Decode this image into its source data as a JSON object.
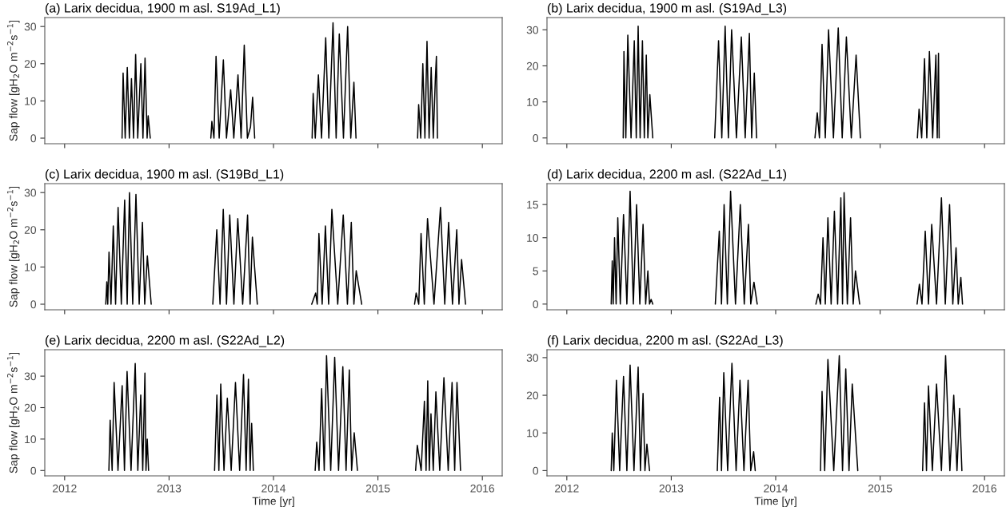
{
  "chart_data": [
    {
      "type": "line",
      "title": "(a) Larix decidua, 1900 m asl. S19Ad_L1)",
      "ylabel": "Sap flow [gH$_{2}$O m$^{−2}$s$^{−1}$]",
      "xlim": [
        2011.81,
        2016.19
      ],
      "xticks": [
        2012,
        2013,
        2014,
        2015,
        2016
      ],
      "ylim": [
        -1.5,
        32.4
      ],
      "yticks": [
        0,
        10,
        20,
        30
      ],
      "tick_labels": "y",
      "series": [
        {
          "color": "#000000",
          "x": [
            2012.55,
            2012.56,
            2012.58,
            2012.6,
            2012.62,
            2012.64,
            2012.66,
            2012.68,
            2012.7,
            2012.73,
            2012.75,
            2012.77,
            2012.79,
            2012.8,
            2012.82,
            2013.1,
            2013.4,
            2013.41,
            2013.43,
            2013.45,
            2013.48,
            2013.52,
            2013.55,
            2013.59,
            2013.62,
            2013.66,
            2013.69,
            2013.72,
            2013.75,
            2013.78,
            2013.8,
            2013.82,
            2014.1,
            2014.37,
            2014.38,
            2014.4,
            2014.43,
            2014.46,
            2014.5,
            2014.53,
            2014.57,
            2014.6,
            2014.63,
            2014.67,
            2014.71,
            2014.74,
            2014.77,
            2014.79,
            2015.1,
            2015.38,
            2015.39,
            2015.41,
            2015.43,
            2015.45,
            2015.47,
            2015.49,
            2015.51,
            2015.53,
            2015.55,
            2015.56,
            2015.57
          ],
          "values": [
            0,
            17.5,
            0,
            19,
            0,
            16,
            0,
            22.5,
            0,
            20,
            0,
            21.5,
            0,
            6,
            0,
            null,
            0,
            4.5,
            0,
            22,
            0,
            21,
            0,
            13,
            0,
            17,
            0,
            25,
            0,
            3,
            11,
            0,
            null,
            0,
            12,
            0,
            17,
            0,
            27,
            0,
            31,
            0,
            28,
            0,
            30,
            0,
            15,
            0,
            null,
            0,
            9,
            0,
            20,
            0,
            26,
            0,
            19,
            0,
            16,
            22,
            0
          ]
        }
      ]
    },
    {
      "type": "line",
      "title": "(b) Larix decidua, 1900 m asl. (S19Ad_L3)",
      "xlim": [
        2011.81,
        2016.19
      ],
      "xticks": [
        2012,
        2013,
        2014,
        2015,
        2016
      ],
      "ylim": [
        -1.6,
        33.4
      ],
      "yticks": [
        0,
        10,
        20,
        30
      ],
      "tick_labels": "y",
      "series": [
        {
          "color": "#000000",
          "x": [
            2012.54,
            2012.547,
            2012.565,
            2012.584,
            2012.615,
            2012.646,
            2012.665,
            2012.683,
            2012.702,
            2012.724,
            2012.742,
            2012.761,
            2012.776,
            2012.795,
            2012.823,
            2013.1,
            2013.416,
            2013.453,
            2013.484,
            2013.516,
            2013.547,
            2013.578,
            2013.624,
            2013.671,
            2013.708,
            2013.748,
            2013.77,
            2013.795,
            2013.817,
            2014.1,
            2014.376,
            2014.398,
            2014.419,
            2014.444,
            2014.475,
            2014.506,
            2014.553,
            2014.599,
            2014.637,
            2014.677,
            2014.724,
            2014.77,
            2014.811,
            2015.1,
            2015.357,
            2015.373,
            2015.398,
            2015.425,
            2015.447,
            2015.472,
            2015.503,
            2015.534,
            2015.547,
            2015.559,
            2015.565
          ],
          "values": [
            0,
            24,
            0,
            28.5,
            0,
            27,
            0,
            31,
            0,
            27,
            0,
            23,
            0,
            12,
            0,
            null,
            0,
            27,
            0,
            31,
            0,
            30,
            0,
            28,
            0,
            29,
            0,
            18,
            0,
            null,
            0,
            7,
            0,
            26,
            0,
            30,
            0,
            30.5,
            0,
            28,
            0,
            23,
            0,
            null,
            0,
            8,
            0,
            22,
            0,
            24,
            0,
            23,
            0,
            23.5,
            0
          ]
        }
      ]
    },
    {
      "type": "line",
      "title": "(c) Larix decidua, 1900 m asl. (S19Bd_L1)",
      "ylabel": "Sap flow [gH$_{2}$O m$^{−2}$s$^{−1}$]",
      "xlim": [
        2011.81,
        2016.19
      ],
      "xticks": [
        2012,
        2013,
        2014,
        2015,
        2016
      ],
      "ylim": [
        -1.5,
        32.4
      ],
      "yticks": [
        0,
        10,
        20,
        30
      ],
      "tick_labels": "y",
      "series": [
        {
          "color": "#000000",
          "x": [
            2012.394,
            2012.404,
            2012.413,
            2012.425,
            2012.444,
            2012.466,
            2012.488,
            2012.512,
            2012.543,
            2012.575,
            2012.599,
            2012.621,
            2012.652,
            2012.683,
            2012.714,
            2012.745,
            2012.767,
            2012.792,
            2012.829,
            2013.1,
            2013.419,
            2013.457,
            2013.488,
            2013.519,
            2013.55,
            2013.581,
            2013.621,
            2013.658,
            2013.705,
            2013.752,
            2013.776,
            2013.798,
            2013.845,
            2014.1,
            2014.366,
            2014.404,
            2014.419,
            2014.435,
            2014.466,
            2014.497,
            2014.528,
            2014.559,
            2014.615,
            2014.668,
            2014.708,
            2014.745,
            2014.77,
            2014.792,
            2014.845,
            2015.1,
            2015.351,
            2015.366,
            2015.391,
            2015.413,
            2015.444,
            2015.475,
            2015.537,
            2015.599,
            2015.64,
            2015.677,
            2015.714,
            2015.755,
            2015.776,
            2015.801,
            2015.839
          ],
          "values": [
            0,
            6,
            0,
            14,
            0,
            21,
            0,
            26,
            0,
            28,
            0,
            30,
            0,
            29.5,
            0,
            22,
            0,
            13,
            0,
            null,
            0,
            20,
            0,
            25.5,
            0,
            24,
            0,
            23,
            0,
            24,
            0,
            18,
            0,
            null,
            0,
            3,
            0,
            19,
            0,
            21,
            0,
            25.5,
            0,
            24,
            0,
            22,
            0,
            9,
            0,
            null,
            0,
            3,
            0,
            19,
            0,
            23,
            0,
            26,
            0,
            22,
            0,
            20,
            0,
            12,
            0
          ]
        }
      ]
    },
    {
      "type": "line",
      "title": "(d) Larix decidua, 2200 m asl. (S22Ad_L1)",
      "xlim": [
        2011.81,
        2016.19
      ],
      "xticks": [
        2012,
        2013,
        2014,
        2015,
        2016
      ],
      "ylim": [
        -0.86,
        18.15
      ],
      "yticks": [
        0,
        5,
        10,
        15
      ],
      "tick_labels": "y",
      "series": [
        {
          "color": "#000000",
          "x": [
            2012.425,
            2012.435,
            2012.444,
            2012.457,
            2012.472,
            2012.488,
            2012.512,
            2012.543,
            2012.575,
            2012.606,
            2012.637,
            2012.668,
            2012.699,
            2012.73,
            2012.755,
            2012.776,
            2012.792,
            2012.807,
            2012.823,
            2013.1,
            2013.422,
            2013.46,
            2013.481,
            2013.506,
            2013.537,
            2013.568,
            2013.615,
            2013.661,
            2013.699,
            2013.739,
            2013.761,
            2013.792,
            2013.823,
            2014.1,
            2014.385,
            2014.407,
            2014.429,
            2014.453,
            2014.475,
            2014.5,
            2014.531,
            2014.562,
            2014.593,
            2014.624,
            2014.64,
            2014.655,
            2014.686,
            2014.717,
            2014.742,
            2014.764,
            2014.804,
            2015.1,
            2015.354,
            2015.376,
            2015.401,
            2015.432,
            2015.463,
            2015.494,
            2015.54,
            2015.587,
            2015.624,
            2015.665,
            2015.696,
            2015.727,
            2015.748,
            2015.773,
            2015.789
          ],
          "values": [
            0,
            6.5,
            0,
            10,
            0,
            13,
            0,
            13.5,
            0,
            17,
            0,
            15,
            0,
            12,
            0,
            5,
            0,
            0.7,
            0,
            null,
            0,
            11,
            0,
            15,
            0,
            17,
            0,
            15,
            0,
            12,
            0,
            3.3,
            0,
            null,
            0,
            1.5,
            0,
            10,
            0,
            13,
            0,
            14,
            0,
            16,
            0,
            16.8,
            0,
            13,
            0,
            5,
            0,
            null,
            0,
            3,
            0,
            11,
            0,
            12,
            0,
            16,
            0,
            15,
            0,
            8.5,
            0,
            4,
            0
          ]
        }
      ]
    },
    {
      "type": "line",
      "title": "(e) Larix decidua, 2200 m asl. (S22Ad_L2)",
      "ylabel": "Sap flow [gH$_{2}$O m$^{−2}$s$^{−1}$]",
      "xlabel": "Time [yr]",
      "xlim": [
        2011.81,
        2016.19
      ],
      "xticks": [
        2012,
        2013,
        2014,
        2015,
        2016
      ],
      "ylim": [
        -1.7,
        38.4
      ],
      "yticks": [
        0,
        10,
        20,
        30
      ],
      "series": [
        {
          "color": "#000000",
          "x": [
            2012.424,
            2012.436,
            2012.455,
            2012.474,
            2012.511,
            2012.551,
            2012.573,
            2012.598,
            2012.636,
            2012.676,
            2012.701,
            2012.729,
            2012.748,
            2012.769,
            2012.779,
            2012.791,
            2012.804,
            2013.1,
            2013.436,
            2013.458,
            2013.477,
            2013.495,
            2013.526,
            2013.558,
            2013.595,
            2013.636,
            2013.676,
            2013.713,
            2013.738,
            2013.76,
            2013.776,
            2013.791,
            2013.807,
            2014.1,
            2014.399,
            2014.414,
            2014.436,
            2014.461,
            2014.486,
            2014.508,
            2014.548,
            2014.586,
            2014.623,
            2014.664,
            2014.695,
            2014.726,
            2014.748,
            2014.773,
            2014.804,
            2015.1,
            2015.361,
            2015.377,
            2015.414,
            2015.445,
            2015.461,
            2015.477,
            2015.492,
            2015.508,
            2015.53,
            2015.555,
            2015.592,
            2015.632,
            2015.673,
            2015.71,
            2015.735,
            2015.757,
            2015.791
          ],
          "values": [
            0,
            16,
            0,
            28,
            0,
            27,
            0,
            31.5,
            0,
            34,
            0,
            24,
            0,
            31,
            0,
            10,
            0,
            null,
            0,
            24,
            0,
            27.5,
            0,
            23,
            0,
            28,
            0,
            30.5,
            0,
            29,
            0,
            15,
            0,
            null,
            0,
            9,
            0,
            26,
            0,
            36.5,
            0,
            36,
            0,
            33,
            0,
            32,
            0,
            12,
            0,
            null,
            0,
            8,
            0,
            22,
            0,
            28.5,
            0,
            18,
            0,
            25,
            0,
            29.5,
            0,
            28,
            0,
            28,
            0
          ]
        }
      ]
    },
    {
      "type": "line",
      "title": "(f) Larix decidua, 2200 m asl. (S22Ad_L3)",
      "xlabel": "Time [yr]",
      "xlim": [
        2011.81,
        2016.19
      ],
      "xticks": [
        2012,
        2013,
        2014,
        2015,
        2016
      ],
      "ylim": [
        -1.4,
        32.1
      ],
      "yticks": [
        0,
        10,
        20,
        30
      ],
      "series": [
        {
          "color": "#000000",
          "x": [
            2012.425,
            2012.435,
            2012.45,
            2012.475,
            2012.506,
            2012.543,
            2012.575,
            2012.606,
            2012.643,
            2012.683,
            2012.705,
            2012.73,
            2012.748,
            2012.767,
            2012.792,
            2013.1,
            2013.441,
            2013.463,
            2013.481,
            2013.503,
            2013.54,
            2013.581,
            2013.621,
            2013.658,
            2013.696,
            2013.736,
            2013.761,
            2013.789,
            2013.804,
            2014.1,
            2014.429,
            2014.444,
            2014.469,
            2014.5,
            2014.556,
            2014.609,
            2014.64,
            2014.671,
            2014.702,
            2014.733,
            2014.786,
            2015.1,
            2015.407,
            2015.425,
            2015.444,
            2015.463,
            2015.5,
            2015.54,
            2015.587,
            2015.627,
            2015.668,
            2015.705,
            2015.736,
            2015.761,
            2015.783
          ],
          "values": [
            0,
            10,
            0,
            24,
            0,
            25,
            0,
            28,
            0,
            27.5,
            0,
            20.5,
            0,
            7,
            0,
            null,
            0,
            19.5,
            0,
            26,
            0,
            28.5,
            0,
            24,
            0,
            24,
            0,
            5,
            0,
            null,
            0,
            21,
            0,
            29.5,
            0,
            30.5,
            0,
            27,
            0,
            23,
            0,
            null,
            0,
            18,
            0,
            22.5,
            0,
            23,
            0,
            30.5,
            0,
            20,
            0,
            16.5,
            0
          ]
        }
      ]
    }
  ]
}
